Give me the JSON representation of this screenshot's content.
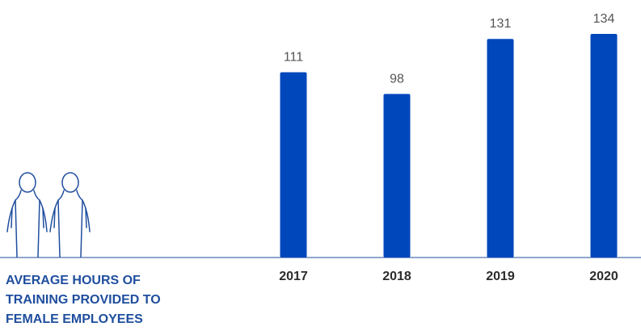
{
  "chart_data": {
    "type": "bar",
    "title": "",
    "caption_lines": [
      "AVERAGE HOURS OF",
      "TRAINING PROVIDED TO",
      "FEMALE EMPLOYEES"
    ],
    "categories": [
      "2017",
      "2018",
      "2019",
      "2020"
    ],
    "values": [
      111,
      98,
      131,
      134
    ],
    "data_labels": [
      "111",
      "98",
      "131",
      "134"
    ],
    "ylim": [
      0,
      134
    ],
    "grid": false,
    "legend": "none",
    "icon": "two-women-icon"
  },
  "colors": {
    "bar": "#0047bb",
    "caption": "#1f4e9e",
    "axis": "#1f4e9e",
    "value_label": "#555555",
    "category_label": "#2b2b2b",
    "icon_stroke": "#1f4e9e"
  }
}
